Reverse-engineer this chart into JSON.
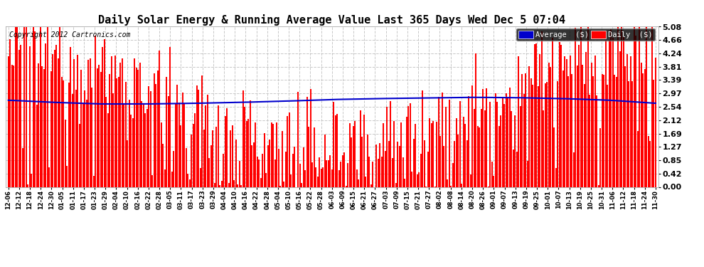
{
  "title": "Daily Solar Energy & Running Average Value Last 365 Days Wed Dec 5 07:04",
  "copyright_text": "Copyright 2012 Cartronics.com",
  "yticks": [
    0.0,
    0.42,
    0.85,
    1.27,
    1.69,
    2.12,
    2.54,
    2.97,
    3.39,
    3.81,
    4.24,
    4.66,
    5.08
  ],
  "ytick_labels": [
    "0.00",
    "0.42",
    "0.85",
    "1.27",
    "1.69",
    "2.12",
    "2.54",
    "2.97",
    "3.39",
    "3.81",
    "4.24",
    "4.66",
    "5.08"
  ],
  "ylim": [
    0.0,
    5.08
  ],
  "bar_color": "#FF0000",
  "avg_color": "#0000CC",
  "background_color": "#FFFFFF",
  "grid_color": "#BBBBBB",
  "legend_avg_bg": "#0000CC",
  "legend_daily_bg": "#CC0000",
  "title_fontsize": 11,
  "xlabel_rotation": 90,
  "xtick_fontsize": 6,
  "ytick_fontsize": 8,
  "n_days": 365,
  "avg_curve_points": [
    2.75,
    2.68,
    2.63,
    2.63,
    2.65,
    2.68,
    2.72,
    2.77,
    2.8,
    2.82,
    2.84,
    2.83,
    2.8,
    2.75,
    2.65
  ],
  "x_labels": [
    "12-06",
    "12-12",
    "12-18",
    "12-24",
    "12-30",
    "01-05",
    "01-11",
    "01-17",
    "01-23",
    "01-29",
    "02-04",
    "02-10",
    "02-16",
    "02-22",
    "02-28",
    "03-05",
    "03-11",
    "03-17",
    "03-23",
    "03-29",
    "04-04",
    "04-10",
    "04-16",
    "04-22",
    "04-28",
    "05-04",
    "05-10",
    "05-16",
    "05-22",
    "05-28",
    "06-03",
    "06-09",
    "06-15",
    "06-21",
    "06-27",
    "07-03",
    "07-09",
    "07-15",
    "07-21",
    "07-27",
    "08-02",
    "08-08",
    "08-14",
    "08-20",
    "08-26",
    "09-01",
    "09-07",
    "09-13",
    "09-19",
    "09-25",
    "10-01",
    "10-07",
    "10-13",
    "10-19",
    "10-25",
    "10-31",
    "11-06",
    "11-12",
    "11-18",
    "11-24",
    "11-30"
  ]
}
